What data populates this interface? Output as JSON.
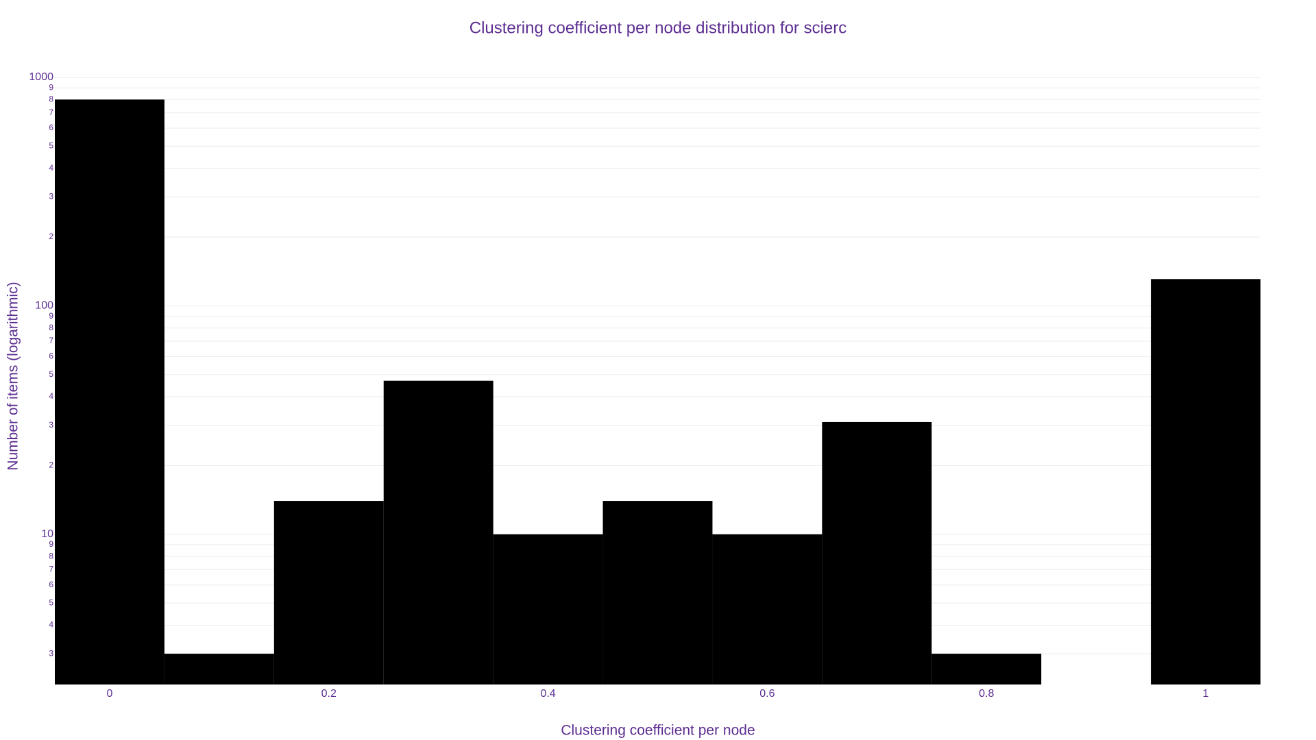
{
  "chart_data": {
    "type": "histogram",
    "title": "Clustering coefficient per node distribution for scierc",
    "x_label": "Clustering coefficient per node",
    "y_label": "Number of items (logarithmic)",
    "bins": [
      -0.05,
      0.05,
      0.15,
      0.25,
      0.35,
      0.45,
      0.55,
      0.65,
      0.75,
      0.85,
      0.95,
      1.05
    ],
    "counts": [
      800,
      3,
      14,
      47,
      10,
      14,
      10,
      31,
      3,
      0,
      131
    ],
    "color": "#000000",
    "text_color": "#5c2d91",
    "xlim": [
      -0.05,
      1.05
    ],
    "xticks": [
      0,
      0.2,
      0.4,
      0.6,
      0.8,
      1
    ],
    "ylim": [
      2.2,
      1000
    ],
    "y_log": true,
    "grid": true,
    "yticks": [
      3,
      4,
      5,
      6,
      7,
      8,
      9,
      10,
      {
        "value": 20,
        "label": "2"
      },
      {
        "value": 30,
        "label": "3"
      },
      {
        "value": 40,
        "label": "4"
      },
      {
        "value": 50,
        "label": "5"
      },
      {
        "value": 60,
        "label": "6"
      },
      {
        "value": 70,
        "label": "7"
      },
      {
        "value": 80,
        "label": "8"
      },
      {
        "value": 90,
        "label": "9"
      },
      100,
      {
        "value": 200,
        "label": "2"
      },
      {
        "value": 300,
        "label": "3"
      },
      {
        "value": 400,
        "label": "4"
      },
      {
        "value": 500,
        "label": "5"
      },
      {
        "value": 600,
        "label": "6"
      },
      {
        "value": 700,
        "label": "7"
      },
      {
        "value": 800,
        "label": "8"
      },
      {
        "value": 900,
        "label": "9"
      },
      1000
    ]
  }
}
